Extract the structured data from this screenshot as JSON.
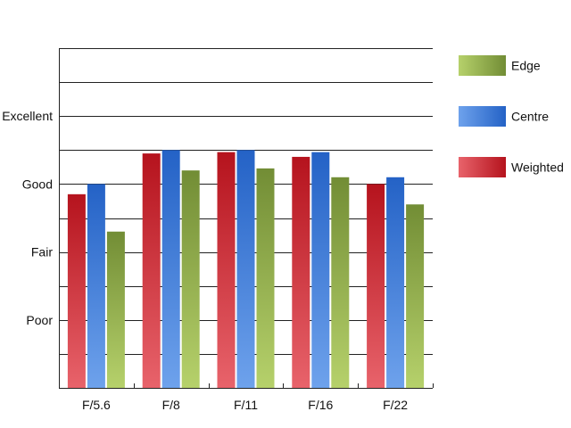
{
  "chart_data": {
    "type": "bar",
    "title": "",
    "xlabel": "",
    "ylabel": "",
    "categories": [
      "F/5.6",
      "F/8",
      "F/11",
      "F/16",
      "F/22"
    ],
    "y_tick_labels": [
      {
        "value": 1,
        "label": "Poor"
      },
      {
        "value": 2,
        "label": "Fair"
      },
      {
        "value": 3,
        "label": "Good"
      },
      {
        "value": 4,
        "label": "Excellent"
      }
    ],
    "ylim": [
      0,
      5
    ],
    "grid": true,
    "legend_position": "right",
    "series": [
      {
        "name": "Weighted",
        "values": [
          2.85,
          3.45,
          3.47,
          3.4,
          3.0
        ],
        "color_light": "#E8636B",
        "color_dark": "#B5131D"
      },
      {
        "name": "Centre",
        "values": [
          3.0,
          3.5,
          3.5,
          3.47,
          3.1
        ],
        "color_light": "#6EA2EC",
        "color_dark": "#2462C6"
      },
      {
        "name": "Edge",
        "values": [
          2.3,
          3.2,
          3.23,
          3.1,
          2.7
        ],
        "color_light": "#B6D16B",
        "color_dark": "#728D35"
      }
    ],
    "legend_order": [
      "Edge",
      "Centre",
      "Weighted"
    ]
  }
}
